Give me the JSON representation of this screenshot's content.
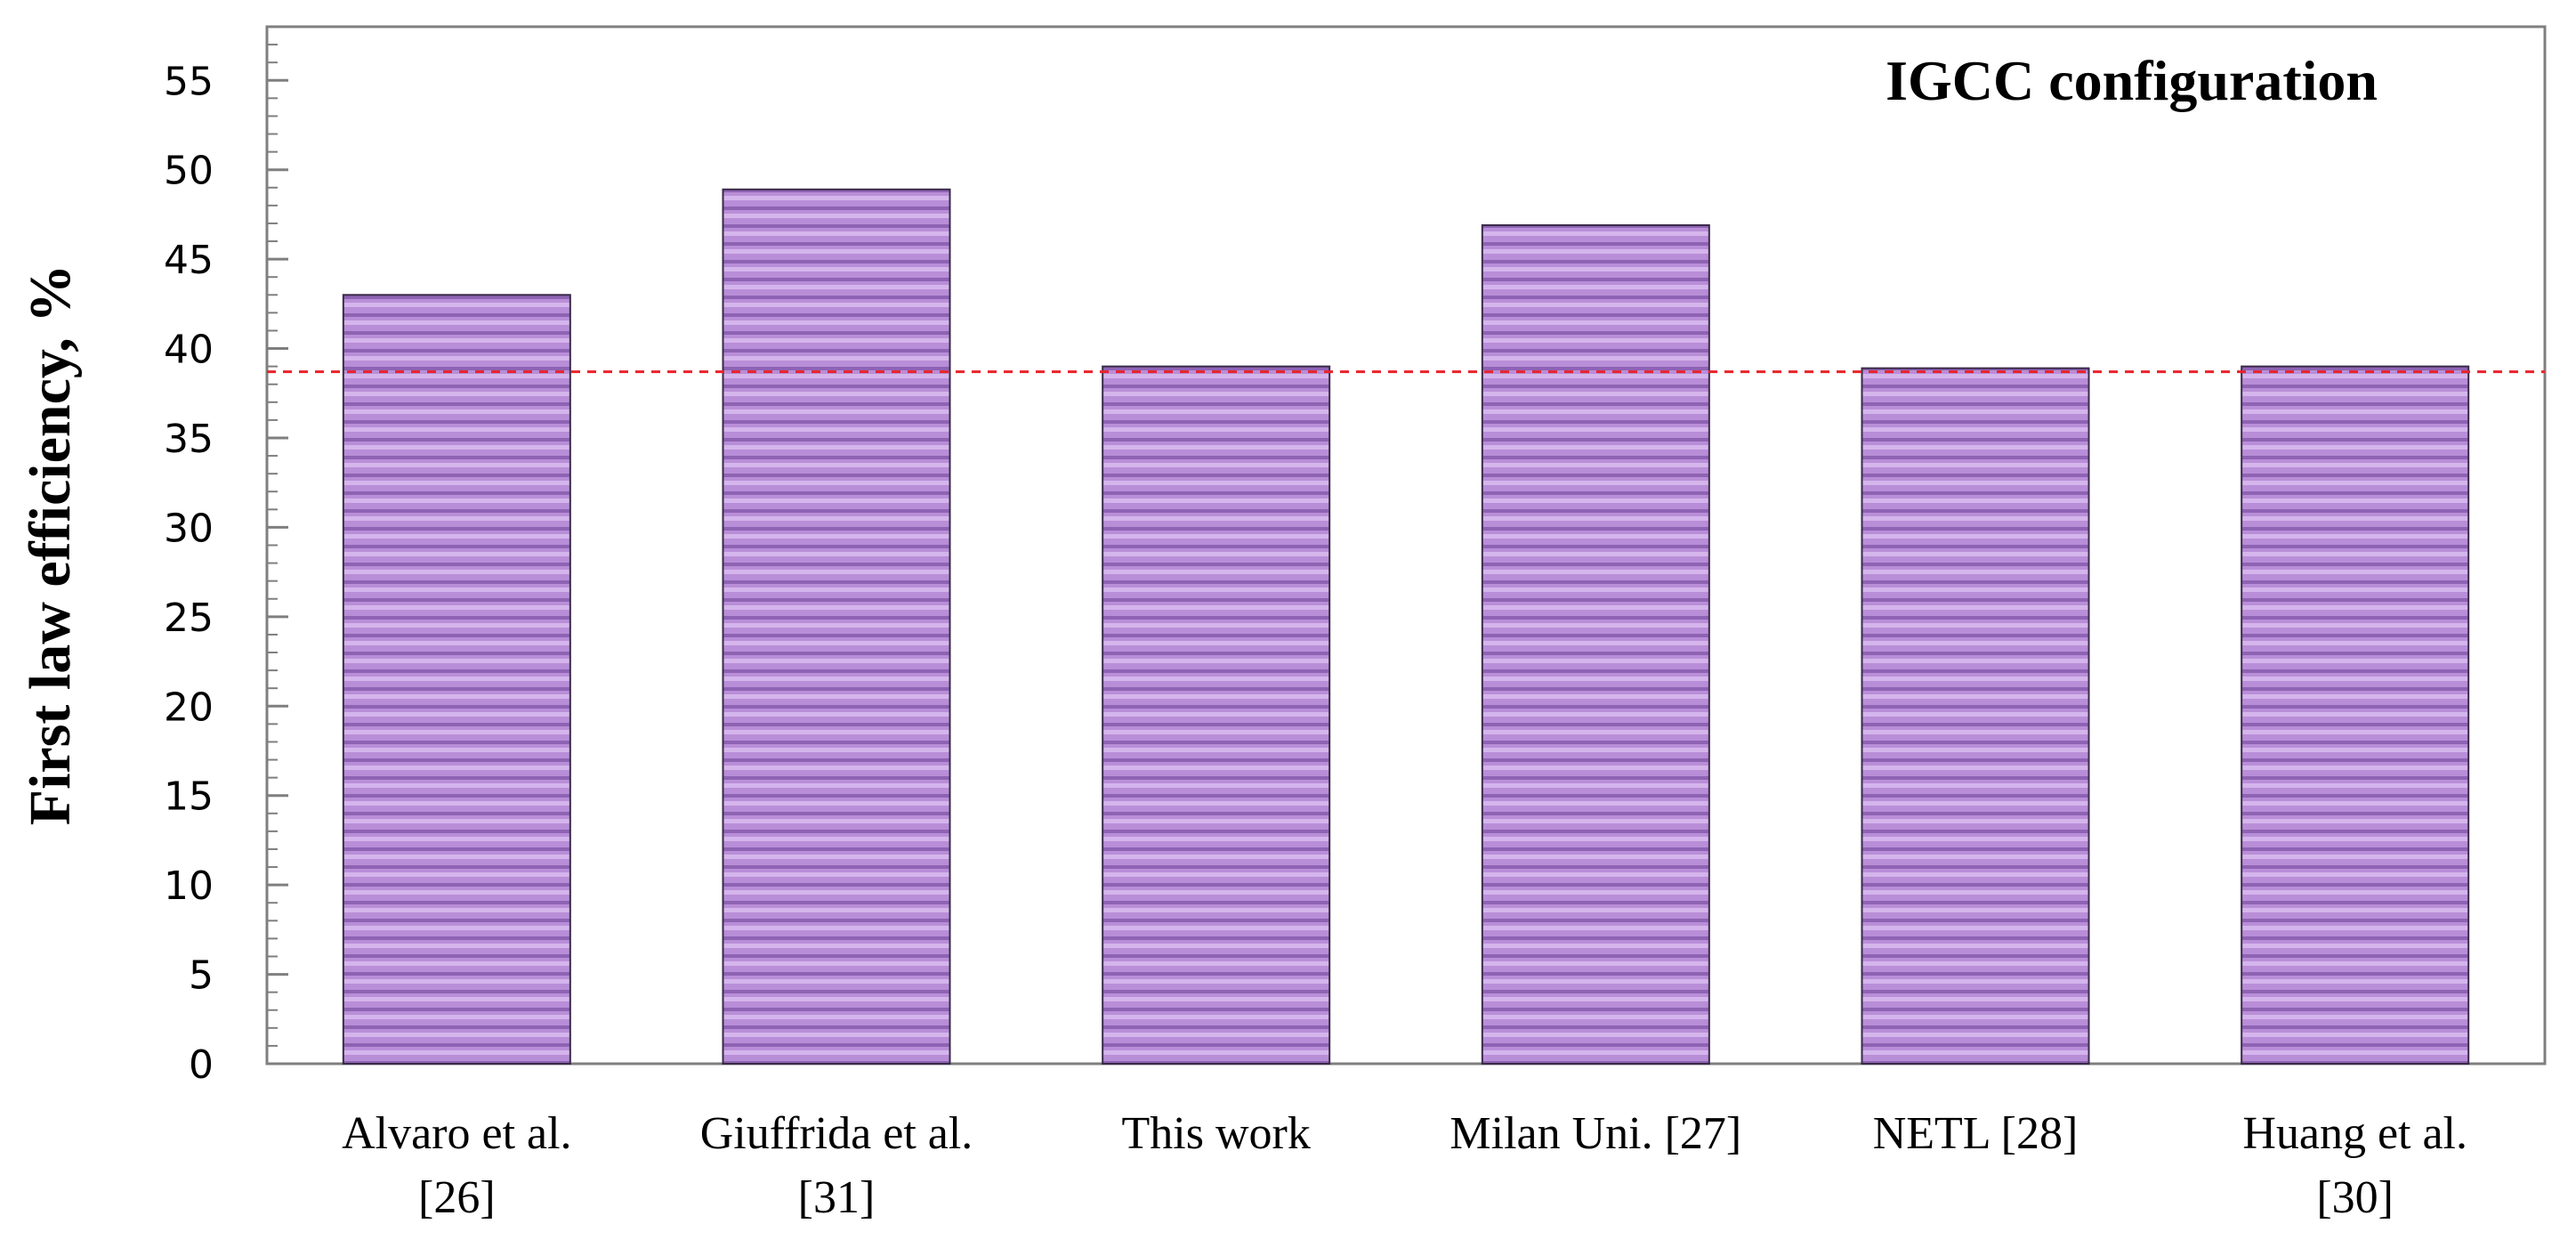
{
  "chart_data": {
    "type": "bar",
    "categories": [
      [
        "Alvaro et al.",
        "[26]"
      ],
      [
        "Giuffrida et al.",
        "[31]"
      ],
      [
        "This work"
      ],
      [
        "Milan Uni. [27]"
      ],
      [
        "NETL [28]"
      ],
      [
        "Huang et al.",
        "[30]"
      ]
    ],
    "values": [
      43,
      48.9,
      39,
      46.9,
      38.9,
      39
    ],
    "title": "",
    "annotation": "IGCC configuration",
    "xlabel": "",
    "ylabel": "First law efficiency, %",
    "ylim": [
      0,
      58
    ],
    "yticks": [
      0,
      5,
      10,
      15,
      20,
      25,
      30,
      35,
      40,
      45,
      50,
      55
    ],
    "reference_line": 38.7,
    "colors": {
      "bar_fill": "#b98ed8",
      "bar_stripe_light": "#d4b5ec",
      "bar_stripe_dark": "#8e63b4",
      "bar_edge": "#3a2a48",
      "reference_line": "#e8232a",
      "axis": "#7f7f7f"
    },
    "grid": false,
    "legend": "none"
  }
}
